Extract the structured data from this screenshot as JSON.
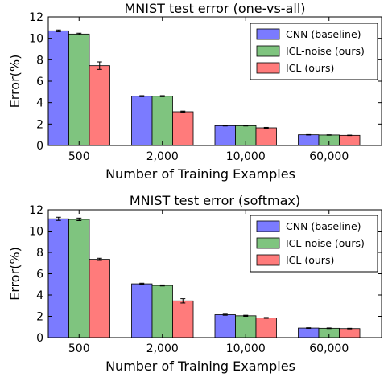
{
  "chart_data": [
    {
      "type": "bar",
      "title": "MNIST test error (one-vs-all)",
      "xlabel": "Number of Training Examples",
      "ylabel": "Error(%)",
      "categories": [
        "500",
        "2,000",
        "10,000",
        "60,000"
      ],
      "ylim": [
        0,
        12
      ],
      "yticks": [
        "0",
        "2",
        "4",
        "6",
        "8",
        "10",
        "12"
      ],
      "legend_position": "top-right",
      "grid": false,
      "series": [
        {
          "name": "CNN (baseline)",
          "color": "#7b7bff",
          "values": [
            10.7,
            4.6,
            1.85,
            1.0
          ],
          "errors": [
            0.08,
            0.05,
            0.03,
            0.02
          ]
        },
        {
          "name": "ICL-noise (ours)",
          "color": "#7fc47f",
          "values": [
            10.4,
            4.6,
            1.85,
            0.98
          ],
          "errors": [
            0.08,
            0.05,
            0.03,
            0.02
          ]
        },
        {
          "name": "ICL (ours)",
          "color": "#ff7b7b",
          "values": [
            7.45,
            3.15,
            1.65,
            0.95
          ],
          "errors": [
            0.35,
            0.06,
            0.04,
            0.02
          ]
        }
      ]
    },
    {
      "type": "bar",
      "title": "MNIST test error (softmax)",
      "xlabel": "Number of Training Examples",
      "ylabel": "Error(%)",
      "categories": [
        "500",
        "2,000",
        "10,000",
        "60,000"
      ],
      "ylim": [
        0,
        12
      ],
      "yticks": [
        "0",
        "2",
        "4",
        "6",
        "8",
        "10",
        "12"
      ],
      "legend_position": "top-right",
      "grid": false,
      "series": [
        {
          "name": "CNN (baseline)",
          "color": "#7b7bff",
          "values": [
            11.15,
            5.05,
            2.15,
            0.9
          ],
          "errors": [
            0.15,
            0.06,
            0.05,
            0.03
          ]
        },
        {
          "name": "ICL-noise (ours)",
          "color": "#7fc47f",
          "values": [
            11.1,
            4.9,
            2.05,
            0.88
          ],
          "errors": [
            0.12,
            0.05,
            0.05,
            0.03
          ]
        },
        {
          "name": "ICL (ours)",
          "color": "#ff7b7b",
          "values": [
            7.35,
            3.45,
            1.85,
            0.85
          ],
          "errors": [
            0.1,
            0.2,
            0.04,
            0.03
          ]
        }
      ]
    }
  ]
}
